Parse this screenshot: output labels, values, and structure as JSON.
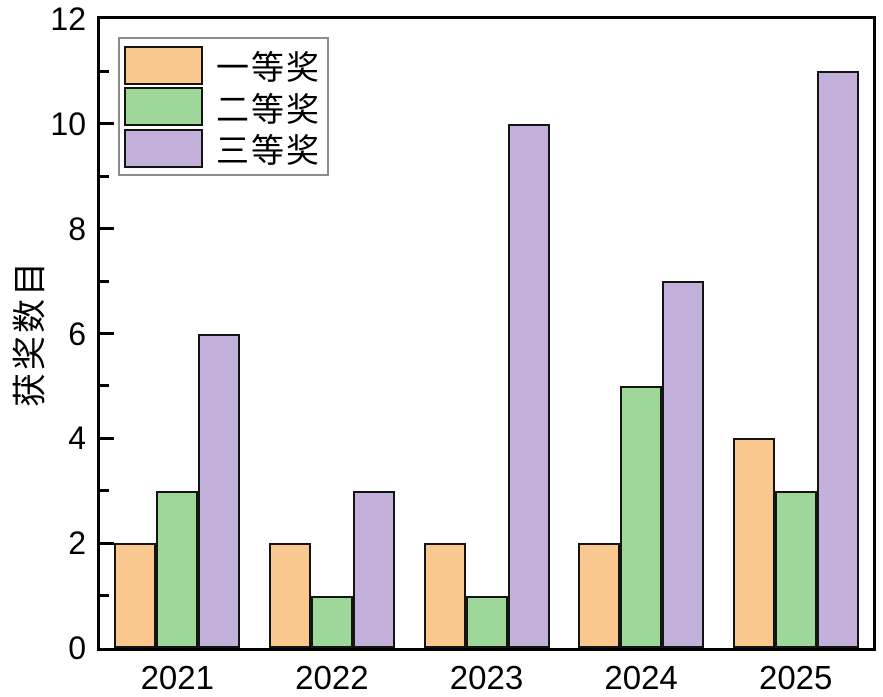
{
  "chart_data": {
    "type": "bar",
    "title": "",
    "xlabel": "",
    "ylabel": "获奖数目",
    "categories": [
      "2021",
      "2022",
      "2023",
      "2024",
      "2025"
    ],
    "series": [
      {
        "name": "一等奖",
        "color": "#FAC78F",
        "values": [
          2,
          2,
          2,
          2,
          4
        ]
      },
      {
        "name": "二等奖",
        "color": "#9DD79A",
        "values": [
          3,
          1,
          1,
          5,
          3
        ]
      },
      {
        "name": "三等奖",
        "color": "#C3B1DB",
        "values": [
          6,
          3,
          10,
          7,
          11
        ]
      }
    ],
    "ylim": [
      0,
      12
    ],
    "yticks": [
      0,
      2,
      4,
      6,
      8,
      10,
      12
    ],
    "minor_yticks": [
      1,
      3,
      5,
      7,
      9,
      11
    ],
    "grid": false,
    "legend_position": "top-left",
    "bar_edge_color": "#141414",
    "axis_color": "#000000",
    "background_color": "#FFFFFF"
  }
}
